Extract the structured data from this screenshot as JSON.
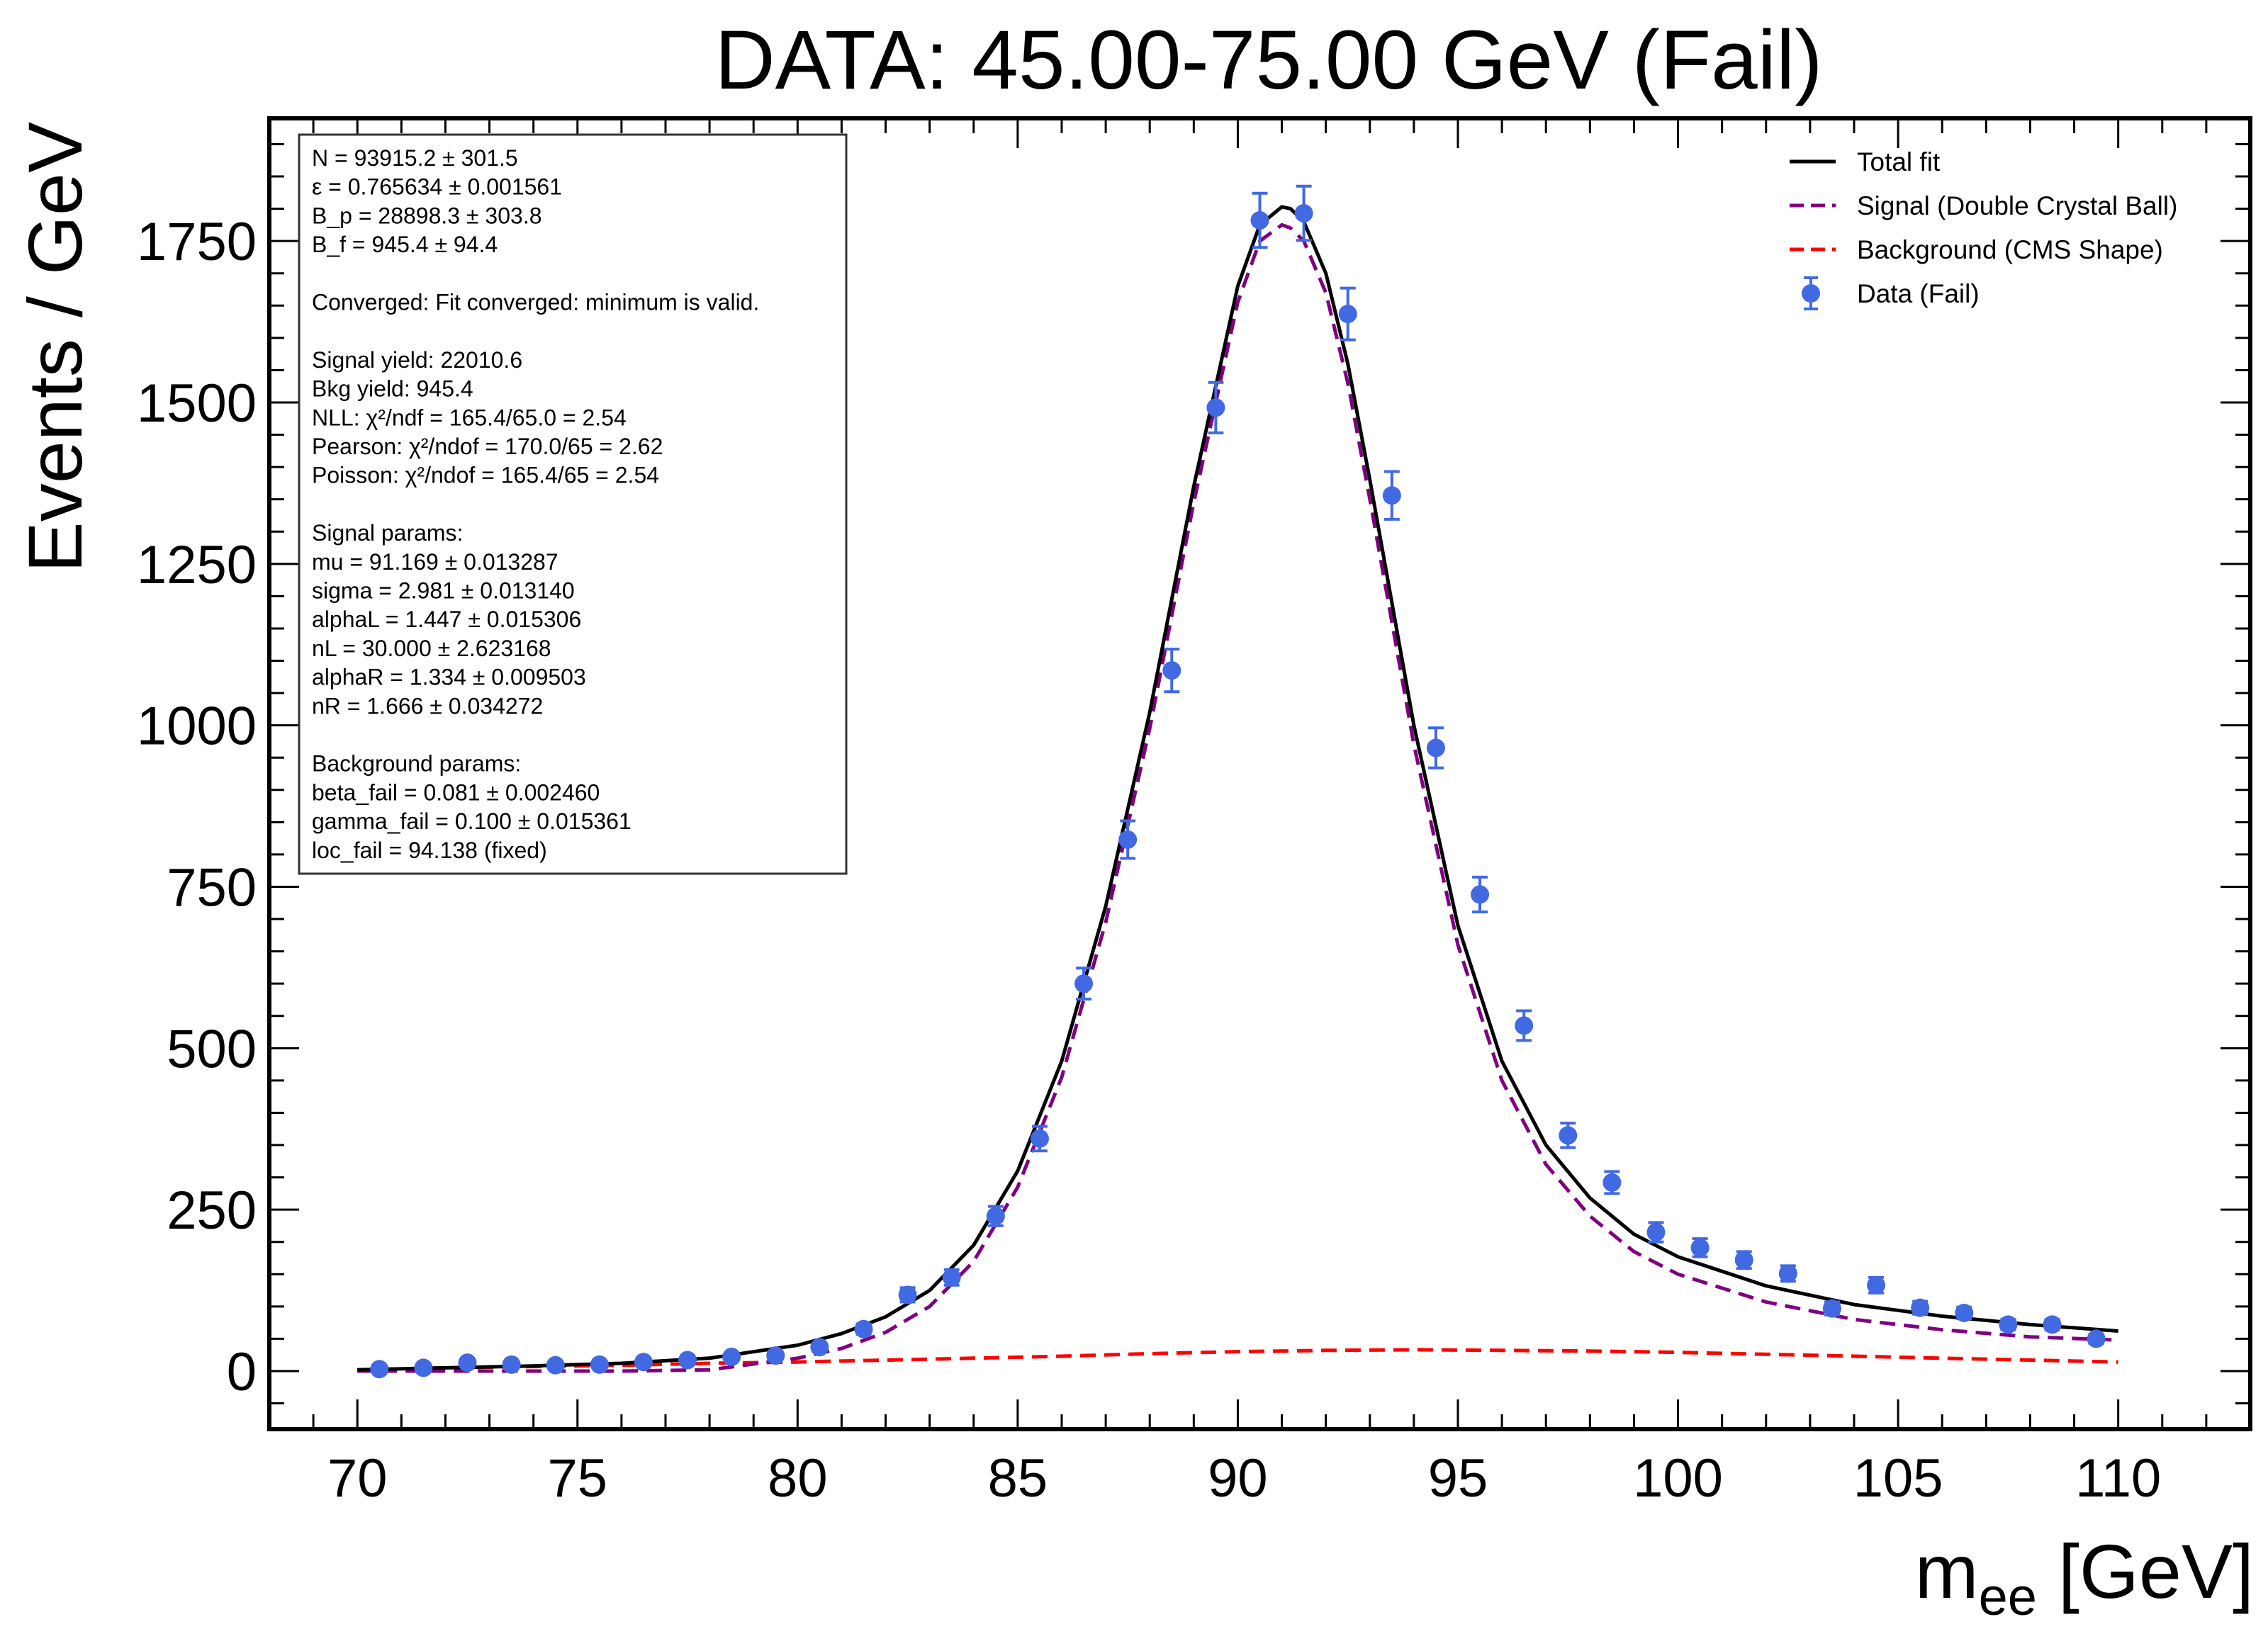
{
  "chart_data": {
    "type": "scatter",
    "title": "DATA: 45.00-75.00 GeV (Fail)",
    "xlabel": "m",
    "xlabel_sub": "ee",
    "xlabel_unit": " [GeV]",
    "ylabel": "Events / GeV",
    "xlim": [
      68,
      113
    ],
    "ylim": [
      -90,
      1940
    ],
    "xticks": [
      70,
      75,
      80,
      85,
      90,
      95,
      100,
      105,
      110
    ],
    "yticks": [
      0,
      250,
      500,
      750,
      1000,
      1250,
      1500,
      1750
    ],
    "grid": false,
    "legend_position": "top-right",
    "legend": [
      {
        "label": "Total fit",
        "style": "solid",
        "color": "#000000"
      },
      {
        "label": "Signal (Double Crystal Ball)",
        "style": "dashed",
        "color": "#800080"
      },
      {
        "label": "Background (CMS Shape)",
        "style": "dashed",
        "color": "#ff0000"
      },
      {
        "label": "Data (Fail)",
        "style": "marker",
        "color": "#4169e1"
      }
    ],
    "stats_lines": [
      "N = 93915.2 ± 301.5",
      "ε = 0.765634 ± 0.001561",
      "B_p = 28898.3 ± 303.8",
      "B_f = 945.4 ± 94.4",
      "",
      "Converged: Fit converged: minimum is valid.",
      "",
      "Signal yield: 22010.6",
      "Bkg yield: 945.4",
      "NLL: χ²/ndf = 165.4/65.0 = 2.54",
      "Pearson: χ²/ndof = 170.0/65 = 2.62",
      "Poisson: χ²/ndof = 165.4/65 = 2.54",
      "",
      "Signal params:",
      "mu = 91.169 ± 0.013287",
      "sigma = 2.981 ± 0.013140",
      "alphaL = 1.447 ± 0.015306",
      "nL = 30.000 ± 2.623168",
      "alphaR = 1.334 ± 0.009503",
      "nR = 1.666 ± 0.034272",
      "",
      "Background params:",
      "beta_fail = 0.081 ± 0.002460",
      "gamma_fail = 0.100 ± 0.015361",
      "loc_fail = 94.138 (fixed)"
    ],
    "series": [
      {
        "name": "Data (Fail)",
        "kind": "points",
        "x": [
          70.5,
          71.5,
          72.5,
          73.5,
          74.5,
          75.5,
          76.5,
          77.5,
          78.5,
          79.5,
          80.5,
          81.5,
          82.5,
          83.5,
          84.5,
          85.5,
          86.5,
          87.5,
          88.5,
          89.5,
          90.5,
          91.5,
          92.5,
          93.5,
          94.5,
          95.5,
          96.5,
          97.5,
          98.5,
          99.5,
          100.5,
          101.5,
          102.5,
          103.5,
          104.5,
          105.5,
          106.5,
          107.5,
          108.5,
          109.5
        ],
        "y": [
          3,
          5,
          13,
          10,
          9,
          10,
          14,
          17,
          22,
          24,
          37,
          65,
          118,
          145,
          240,
          360,
          600,
          823,
          1085,
          1492,
          1782,
          1793,
          1637,
          1356,
          965,
          738,
          535,
          365,
          292,
          215,
          191,
          172,
          151,
          97,
          133,
          98,
          90,
          72,
          72,
          50
        ],
        "yerr": [
          2,
          2,
          4,
          3,
          3,
          3,
          4,
          4,
          5,
          5,
          6,
          8,
          11,
          12,
          15,
          19,
          24,
          29,
          33,
          39,
          42,
          42,
          40,
          37,
          31,
          27,
          23,
          19,
          17,
          15,
          14,
          13,
          12,
          10,
          12,
          10,
          9,
          8,
          8,
          7
        ]
      },
      {
        "name": "Total fit",
        "kind": "line",
        "x": [
          70,
          72,
          74,
          76,
          78,
          80,
          81,
          82,
          83,
          84,
          85,
          86,
          87,
          88,
          89,
          90,
          90.5,
          91,
          91.2,
          91.5,
          92,
          92.5,
          93,
          94,
          95,
          96,
          97,
          98,
          99,
          100,
          102,
          104,
          106,
          108,
          110
        ],
        "y": [
          2,
          5,
          8,
          12,
          20,
          40,
          58,
          84,
          125,
          195,
          310,
          480,
          720,
          1020,
          1370,
          1680,
          1775,
          1803,
          1800,
          1780,
          1700,
          1560,
          1380,
          1000,
          690,
          480,
          350,
          268,
          212,
          177,
          132,
          103,
          85,
          72,
          62
        ]
      },
      {
        "name": "Signal (Double Crystal Ball)",
        "kind": "line",
        "x": [
          70,
          72,
          74,
          76,
          78,
          80,
          81,
          82,
          83,
          84,
          85,
          86,
          87,
          88,
          89,
          90,
          90.5,
          91,
          91.2,
          91.5,
          92,
          92.5,
          93,
          94,
          95,
          96,
          97,
          98,
          99,
          100,
          102,
          104,
          106,
          108,
          110
        ],
        "y": [
          0,
          0,
          0,
          0,
          2,
          20,
          35,
          60,
          100,
          170,
          285,
          455,
          695,
          995,
          1345,
          1655,
          1750,
          1775,
          1770,
          1750,
          1670,
          1530,
          1350,
          970,
          660,
          450,
          320,
          240,
          185,
          150,
          107,
          80,
          64,
          53,
          48
        ]
      },
      {
        "name": "Background (CMS Shape)",
        "kind": "line",
        "x": [
          70,
          72,
          74,
          76,
          78,
          80,
          82,
          84,
          86,
          88,
          90,
          92,
          94,
          96,
          98,
          100,
          102,
          104,
          106,
          108,
          110
        ],
        "y": [
          2,
          5,
          7,
          9,
          12,
          14,
          17,
          20,
          23,
          27,
          30,
          32,
          33,
          32,
          31,
          29,
          26,
          23,
          20,
          17,
          14
        ]
      }
    ]
  }
}
